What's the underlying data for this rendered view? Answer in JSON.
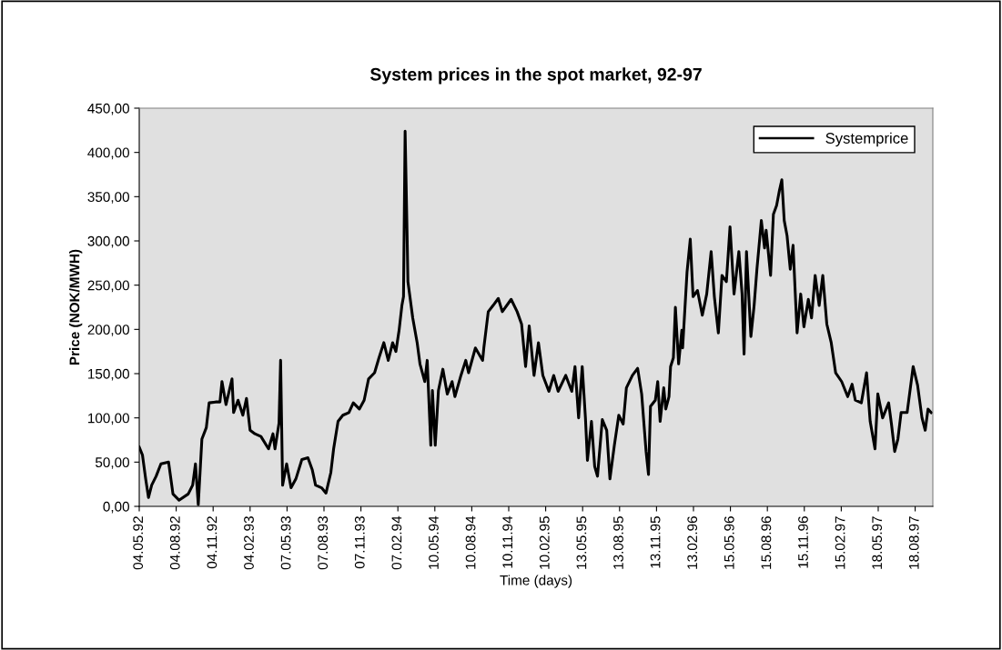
{
  "chart_data": {
    "type": "line",
    "title": "System prices in the spot market, 92-97",
    "xlabel": "Time (days)",
    "ylabel": "Price (NOK/MWH)",
    "legend": "top right",
    "grid": false,
    "marker": "none",
    "line_style": "solid",
    "xlim": [
      "1992-05-04",
      "1997-10-01"
    ],
    "ylim": [
      0,
      450
    ],
    "xticks": [
      {
        "value": "1992-05-04",
        "label": "04.05.92"
      },
      {
        "value": "1992-08-04",
        "label": "04.08.92"
      },
      {
        "value": "1992-11-04",
        "label": "04.11.92"
      },
      {
        "value": "1993-02-04",
        "label": "04.02.93"
      },
      {
        "value": "1993-05-07",
        "label": "07.05.93"
      },
      {
        "value": "1993-08-07",
        "label": "07.08.93"
      },
      {
        "value": "1993-11-07",
        "label": "07.11.93"
      },
      {
        "value": "1994-02-07",
        "label": "07.02.94"
      },
      {
        "value": "1994-05-10",
        "label": "10.05.94"
      },
      {
        "value": "1994-08-10",
        "label": "10.08.94"
      },
      {
        "value": "1994-11-10",
        "label": "10.11.94"
      },
      {
        "value": "1995-02-10",
        "label": "10.02.95"
      },
      {
        "value": "1995-05-13",
        "label": "13.05.95"
      },
      {
        "value": "1995-08-13",
        "label": "13.08.95"
      },
      {
        "value": "1995-11-13",
        "label": "13.11.95"
      },
      {
        "value": "1996-02-13",
        "label": "13.02.96"
      },
      {
        "value": "1996-05-15",
        "label": "15.05.96"
      },
      {
        "value": "1996-08-15",
        "label": "15.08.96"
      },
      {
        "value": "1996-11-15",
        "label": "15.11.96"
      },
      {
        "value": "1997-02-15",
        "label": "15.02.97"
      },
      {
        "value": "1997-05-18",
        "label": "18.05.97"
      },
      {
        "value": "1997-08-18",
        "label": "18.08.97"
      }
    ],
    "yticks": [
      {
        "value": 0,
        "label": "0,00"
      },
      {
        "value": 50,
        "label": "50,00"
      },
      {
        "value": 100,
        "label": "100,00"
      },
      {
        "value": 150,
        "label": "150,00"
      },
      {
        "value": 200,
        "label": "200,00"
      },
      {
        "value": 250,
        "label": "250,00"
      },
      {
        "value": 300,
        "label": "300,00"
      },
      {
        "value": 350,
        "label": "350,00"
      },
      {
        "value": 400,
        "label": "400,00"
      },
      {
        "value": 450,
        "label": "450,00"
      }
    ],
    "series": [
      {
        "name": "Systemprice",
        "color": "#000000",
        "x": [
          "1992-05-04",
          "1992-05-12",
          "1992-05-20",
          "1992-05-27",
          "1992-06-04",
          "1992-06-15",
          "1992-06-27",
          "1992-07-16",
          "1992-07-27",
          "1992-08-11",
          "1992-09-03",
          "1992-09-14",
          "1992-09-21",
          "1992-09-28",
          "1992-10-07",
          "1992-10-18",
          "1992-10-25",
          "1992-11-10",
          "1992-11-21",
          "1992-11-26",
          "1992-12-06",
          "1992-12-21",
          "1992-12-25",
          "1993-01-05",
          "1993-01-17",
          "1993-01-26",
          "1993-02-04",
          "1993-02-16",
          "1993-03-03",
          "1993-03-22",
          "1993-04-02",
          "1993-04-07",
          "1993-04-17",
          "1993-04-21",
          "1993-04-26",
          "1993-05-06",
          "1993-05-17",
          "1993-05-29",
          "1993-06-13",
          "1993-06-28",
          "1993-07-09",
          "1993-07-17",
          "1993-08-01",
          "1993-08-12",
          "1993-08-24",
          "1993-08-31",
          "1993-09-11",
          "1993-09-23",
          "1993-10-08",
          "1993-10-19",
          "1993-11-03",
          "1993-11-15",
          "1993-11-26",
          "1993-12-11",
          "1993-12-22",
          "1994-01-03",
          "1994-01-14",
          "1994-01-25",
          "1994-02-02",
          "1994-02-10",
          "1994-02-17",
          "1994-02-21",
          "1994-02-25",
          "1994-03-02",
          "1994-03-04",
          "1994-03-16",
          "1994-03-27",
          "1994-04-03",
          "1994-04-15",
          "1994-04-21",
          "1994-04-30",
          "1994-05-04",
          "1994-05-11",
          "1994-05-19",
          "1994-05-30",
          "1994-06-10",
          "1994-06-22",
          "1994-06-29",
          "1994-07-14",
          "1994-07-26",
          "1994-08-02",
          "1994-08-19",
          "1994-09-06",
          "1994-09-09",
          "1994-09-20",
          "1994-10-02",
          "1994-10-15",
          "1994-10-25",
          "1994-11-16",
          "1994-12-01",
          "1994-12-12",
          "1994-12-22",
          "1994-12-31",
          "1995-01-12",
          "1995-01-23",
          "1995-02-03",
          "1995-02-18",
          "1995-03-02",
          "1995-03-13",
          "1995-04-01",
          "1995-04-16",
          "1995-04-24",
          "1995-05-03",
          "1995-05-12",
          "1995-05-20",
          "1995-05-25",
          "1995-06-04",
          "1995-06-12",
          "1995-06-19",
          "1995-07-01",
          "1995-07-12",
          "1995-07-20",
          "1995-07-31",
          "1995-08-11",
          "1995-08-22",
          "1995-08-30",
          "1995-09-14",
          "1995-09-27",
          "1995-10-07",
          "1995-10-18",
          "1995-10-24",
          "1995-10-29",
          "1995-11-10",
          "1995-11-16",
          "1995-11-22",
          "1995-12-01",
          "1995-12-06",
          "1995-12-14",
          "1995-12-18",
          "1995-12-25",
          "1995-12-30",
          "1996-01-07",
          "1996-01-15",
          "1996-01-17",
          "1996-01-28",
          "1996-02-05",
          "1996-02-12",
          "1996-02-23",
          "1996-03-06",
          "1996-03-17",
          "1996-03-28",
          "1996-04-05",
          "1996-04-15",
          "1996-04-24",
          "1996-05-05",
          "1996-05-14",
          "1996-05-24",
          "1996-06-05",
          "1996-06-13",
          "1996-06-18",
          "1996-06-24",
          "1996-07-05",
          "1996-07-13",
          "1996-07-20",
          "1996-07-31",
          "1996-08-08",
          "1996-08-12",
          "1996-08-23",
          "1996-08-30",
          "1996-09-07",
          "1996-09-14",
          "1996-09-20",
          "1996-09-26",
          "1996-10-03",
          "1996-10-11",
          "1996-10-18",
          "1996-10-28",
          "1996-11-06",
          "1996-11-14",
          "1996-11-25",
          "1996-12-03",
          "1996-12-12",
          "1996-12-22",
          "1996-12-31",
          "1997-01-10",
          "1997-01-21",
          "1997-02-01",
          "1997-02-16",
          "1997-03-03",
          "1997-03-14",
          "1997-03-22",
          "1997-04-06",
          "1997-04-19",
          "1997-04-28",
          "1997-05-10",
          "1997-05-17",
          "1997-05-29",
          "1997-06-13",
          "1997-06-20",
          "1997-06-28",
          "1997-07-06",
          "1997-07-14",
          "1997-07-29",
          "1997-08-13",
          "1997-08-24",
          "1997-09-04",
          "1997-09-12",
          "1997-09-19",
          "1997-09-27"
        ],
        "values": [
          67,
          58,
          31,
          10,
          24,
          34,
          48,
          50,
          14,
          7,
          14,
          24,
          48,
          2,
          76,
          89,
          117,
          118,
          118,
          141,
          115,
          144,
          106,
          120,
          103,
          122,
          86,
          82,
          79,
          65,
          82,
          65,
          94,
          165,
          24,
          48,
          21,
          31,
          53,
          55,
          41,
          24,
          21,
          15,
          38,
          65,
          96,
          103,
          106,
          117,
          110,
          120,
          144,
          151,
          168,
          185,
          165,
          185,
          175,
          199,
          227,
          237,
          424,
          306,
          254,
          213,
          185,
          161,
          141,
          165,
          69,
          131,
          69,
          131,
          155,
          127,
          141,
          124,
          148,
          165,
          151,
          179,
          165,
          179,
          220,
          227,
          235,
          220,
          234,
          220,
          206,
          158,
          204,
          148,
          185,
          148,
          130,
          148,
          130,
          148,
          130,
          158,
          100,
          158,
          100,
          52,
          96,
          45,
          34,
          98,
          86,
          31,
          69,
          103,
          93,
          134,
          148,
          156,
          127,
          62,
          36,
          113,
          120,
          141,
          96,
          134,
          110,
          124,
          158,
          168,
          225,
          161,
          199,
          179,
          265,
          302,
          237,
          244,
          216,
          240,
          288,
          237,
          196,
          261,
          254,
          316,
          240,
          288,
          240,
          172,
          288,
          192,
          227,
          268,
          323,
          292,
          312,
          261,
          330,
          340,
          357,
          369,
          323,
          306,
          268,
          295,
          196,
          240,
          203,
          234,
          213,
          261,
          227,
          261,
          206,
          185,
          151,
          141,
          124,
          138,
          120,
          117,
          151,
          96,
          65,
          127,
          100,
          117,
          93,
          62,
          76,
          106,
          106,
          158,
          137,
          100,
          86,
          110,
          106
        ]
      }
    ]
  }
}
